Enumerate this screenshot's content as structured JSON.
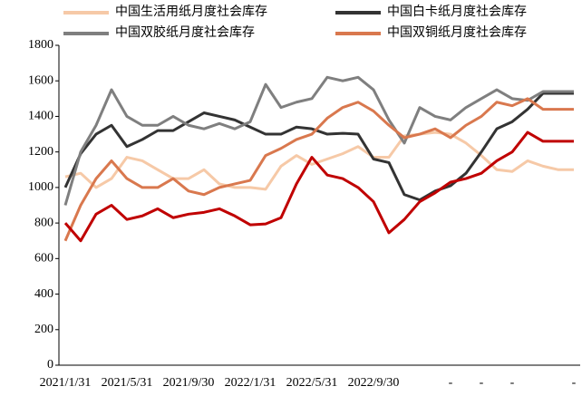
{
  "chart_data": {
    "type": "line",
    "categories": [
      "2021/1/31",
      null,
      null,
      null,
      "2021/5/31",
      null,
      null,
      null,
      "2021/9/30",
      null,
      null,
      null,
      "2022/1/31",
      null,
      null,
      null,
      "2022/5/31",
      null,
      null,
      null,
      "2022/9/30",
      null,
      null,
      null,
      null,
      "-",
      null,
      "-",
      null,
      "-",
      null,
      null,
      null,
      "-"
    ],
    "series": [
      {
        "name": "中国生活用纸月度社会库存",
        "color": "#f6c9a7",
        "values": [
          1060,
          1080,
          1000,
          1050,
          1170,
          1150,
          1100,
          1050,
          1050,
          1100,
          1020,
          1000,
          1000,
          990,
          1120,
          1180,
          1130,
          1160,
          1190,
          1230,
          1170,
          1170,
          1290,
          1300,
          1310,
          1300,
          1250,
          1180,
          1100,
          1090,
          1150,
          1120,
          1100,
          1100
        ]
      },
      {
        "name": "中国白卡纸月度社会库存",
        "color": "#333333",
        "values": [
          1000,
          1190,
          1300,
          1350,
          1230,
          1270,
          1320,
          1320,
          1370,
          1420,
          1400,
          1380,
          1340,
          1300,
          1300,
          1340,
          1330,
          1300,
          1305,
          1300,
          1160,
          1140,
          960,
          930,
          980,
          1010,
          1080,
          1200,
          1330,
          1370,
          1440,
          1530,
          1530,
          1530
        ]
      },
      {
        "name": "中国双胶纸月度社会库存",
        "color": "#7f7f7f",
        "values": [
          900,
          1200,
          1350,
          1550,
          1400,
          1350,
          1350,
          1400,
          1350,
          1330,
          1360,
          1330,
          1370,
          1580,
          1450,
          1480,
          1500,
          1620,
          1600,
          1620,
          1550,
          1380,
          1250,
          1450,
          1400,
          1380,
          1450,
          1500,
          1550,
          1500,
          1490,
          1540,
          1540,
          1540
        ]
      },
      {
        "name": "中国双铜纸月度社会库存",
        "color": "#d9784e",
        "values": [
          700,
          900,
          1050,
          1150,
          1050,
          1000,
          1000,
          1050,
          980,
          960,
          1000,
          1020,
          1040,
          1180,
          1220,
          1270,
          1300,
          1390,
          1450,
          1480,
          1430,
          1350,
          1280,
          1300,
          1330,
          1280,
          1350,
          1400,
          1480,
          1460,
          1500,
          1440,
          1440,
          1440
        ]
      },
      {
        "color": "#c00000",
        "values": [
          800,
          700,
          850,
          900,
          820,
          840,
          880,
          830,
          850,
          860,
          880,
          840,
          790,
          795,
          830,
          1020,
          1170,
          1070,
          1050,
          1000,
          920,
          745,
          820,
          920,
          970,
          1030,
          1050,
          1080,
          1150,
          1200,
          1310,
          1260,
          1260,
          1260
        ]
      }
    ],
    "ylim": [
      0,
      1800
    ],
    "yticks": [
      0,
      200,
      400,
      600,
      800,
      1000,
      1200,
      1400,
      1600,
      1800
    ]
  }
}
